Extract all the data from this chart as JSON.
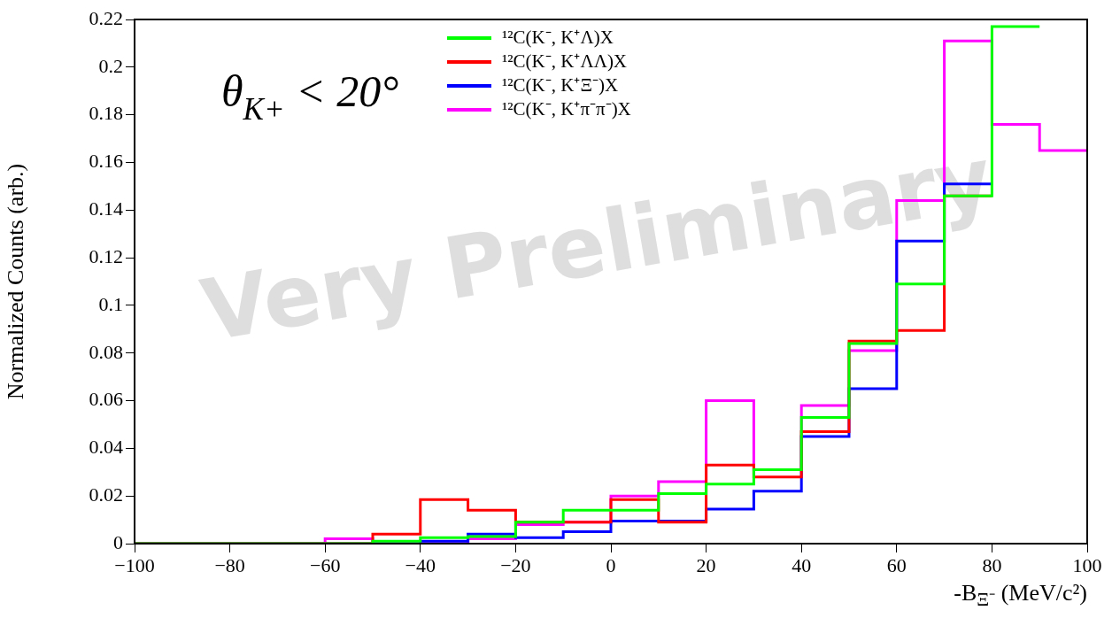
{
  "chart_data": {
    "type": "histogram",
    "xlabel": "-B$_{Ξ⁻}$ (MeV/c²)",
    "ylabel": "Normalized Counts (arb.)",
    "annotations": [
      "θ$_{K+}$ < 20°",
      "Very Preliminary"
    ],
    "bins": [
      -100,
      -90,
      -80,
      -70,
      -60,
      -50,
      -40,
      -30,
      -20,
      -10,
      0,
      10,
      20,
      30,
      40,
      50,
      60,
      70,
      80,
      90,
      100
    ],
    "series": [
      {
        "name": "¹²C(K⁻, K⁺Λ)X",
        "color": "#00ff00",
        "bins": [
          -100,
          -90,
          -80,
          -70,
          -60,
          -50,
          -40,
          -30,
          -20,
          -10,
          0,
          10,
          20,
          30,
          40,
          50,
          60,
          70,
          80,
          90
        ],
        "values": [
          0,
          0,
          0,
          0,
          0,
          0.001,
          0.0025,
          0.003,
          0.009,
          0.014,
          0.014,
          0.021,
          0.025,
          0.031,
          0.053,
          0.084,
          0.109,
          0.146,
          0.217
        ]
      },
      {
        "name": "¹²C(K⁻, K⁺ΛΛ)X",
        "color": "#ff0000",
        "bins": [
          -100,
          -90,
          -80,
          -70,
          -60,
          -50,
          -40,
          -30,
          -20,
          -10,
          0,
          10,
          20,
          30,
          40,
          50,
          60,
          70,
          80
        ],
        "values": [
          0,
          0,
          0,
          0,
          0,
          0.004,
          0.0185,
          0.014,
          0.009,
          0.009,
          0.0185,
          0.009,
          0.033,
          0.028,
          0.047,
          0.085,
          0.0895,
          0.146
        ]
      },
      {
        "name": "¹²C(K⁻, K⁺Ξ⁻)X",
        "color": "#0000ff",
        "bins": [
          -100,
          -90,
          -80,
          -70,
          -60,
          -50,
          -40,
          -30,
          -20,
          -10,
          0,
          10,
          20,
          30,
          40,
          50,
          60,
          70,
          80
        ],
        "values": [
          0,
          0,
          0,
          0,
          0,
          0,
          0.001,
          0.004,
          0.0025,
          0.005,
          0.0095,
          0.0095,
          0.0145,
          0.022,
          0.045,
          0.065,
          0.127,
          0.151
        ]
      },
      {
        "name": "¹²C(K⁻, K⁺π⁻π⁻)X",
        "color": "#ff00ff",
        "values": [
          0,
          0,
          0,
          0,
          0.002,
          0,
          0,
          0.002,
          0.008,
          0.009,
          0.02,
          0.026,
          0.06,
          0.031,
          0.058,
          0.081,
          0.144,
          0.211,
          0.176,
          0.165
        ]
      }
    ],
    "xlim": [
      -100,
      100
    ],
    "xticks": [
      {
        "value": -100,
        "label": "−100"
      },
      {
        "value": -80,
        "label": "−80"
      },
      {
        "value": -60,
        "label": "−60"
      },
      {
        "value": -40,
        "label": "−40"
      },
      {
        "value": -20,
        "label": "−20"
      },
      0,
      20,
      40,
      60,
      80,
      100
    ],
    "ylim": [
      0,
      0.22
    ],
    "yticks": [
      0,
      0.02,
      0.04,
      0.06,
      0.08,
      0.1,
      0.12,
      0.14,
      0.16,
      0.18,
      0.2,
      0.22
    ],
    "legend": "top"
  }
}
